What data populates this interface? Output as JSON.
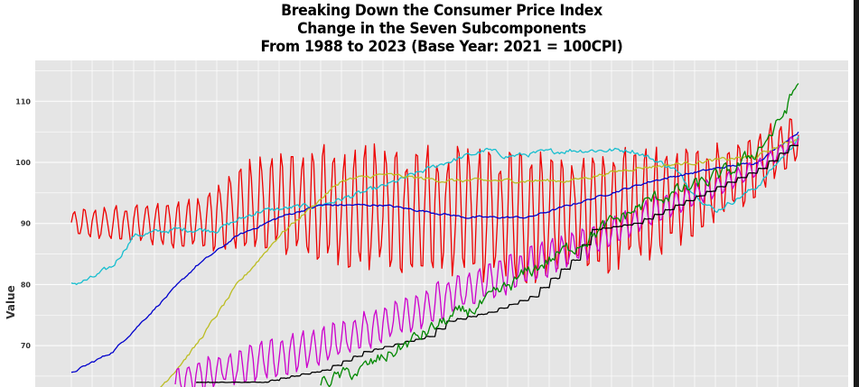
{
  "chart_data": {
    "type": "line",
    "title_lines": [
      "Breaking Down the Consumer Price Index",
      "Change in the Seven Subcomponents",
      "From 1988 to 2023 (Base Year: 2021 = 100CPI)"
    ],
    "ylabel": "Value",
    "xlabel": "",
    "ylim": [
      65,
      117
    ],
    "yticks": [
      "70",
      "80",
      "90",
      "100",
      "110"
    ],
    "grid": true,
    "x_start": 1988,
    "x_end": 2023,
    "series": [
      {
        "name": "red",
        "color": "#ee0000",
        "style": "seasonal",
        "anchors": [
          [
            1988,
            90
          ],
          [
            1994,
            90
          ],
          [
            1997,
            93
          ],
          [
            2000,
            93
          ],
          [
            2010,
            91
          ],
          [
            2014,
            92
          ],
          [
            2017,
            94
          ],
          [
            2020,
            98
          ],
          [
            2023,
            104
          ]
        ],
        "amp_anchors": [
          [
            1988,
            2
          ],
          [
            1991,
            3
          ],
          [
            1994,
            4
          ],
          [
            1996,
            7
          ],
          [
            2000,
            9
          ],
          [
            2005,
            10
          ],
          [
            2010,
            10
          ],
          [
            2015,
            9
          ],
          [
            2019,
            6
          ],
          [
            2023,
            4
          ]
        ]
      },
      {
        "name": "cyan",
        "color": "#17becf",
        "style": "smooth",
        "anchors": [
          [
            1988,
            80
          ],
          [
            1989,
            81
          ],
          [
            1990,
            83
          ],
          [
            1991,
            88
          ],
          [
            1993,
            89
          ],
          [
            1995,
            89
          ],
          [
            1997,
            92
          ],
          [
            2000,
            93
          ],
          [
            2003,
            96
          ],
          [
            2006,
            100
          ],
          [
            2008,
            102
          ],
          [
            2009,
            101
          ],
          [
            2012,
            102
          ],
          [
            2015,
            102
          ],
          [
            2017,
            99
          ],
          [
            2018,
            95
          ],
          [
            2019,
            92
          ],
          [
            2020,
            94
          ],
          [
            2021,
            96
          ],
          [
            2022,
            100
          ],
          [
            2023,
            104
          ]
        ],
        "noise": 0.7
      },
      {
        "name": "blue",
        "color": "#0000cc",
        "style": "smooth",
        "anchors": [
          [
            1988,
            65.5
          ],
          [
            1990,
            69
          ],
          [
            1992,
            76
          ],
          [
            1994,
            83
          ],
          [
            1996,
            88
          ],
          [
            1998,
            91
          ],
          [
            2000,
            93
          ],
          [
            2003,
            93
          ],
          [
            2007,
            91
          ],
          [
            2010,
            91
          ],
          [
            2013,
            94
          ],
          [
            2016,
            97
          ],
          [
            2019,
            99
          ],
          [
            2021,
            100
          ],
          [
            2023,
            105
          ]
        ],
        "noise": 0.3
      },
      {
        "name": "olive",
        "color": "#bcbd22",
        "style": "smooth",
        "anchors": [
          [
            1992,
            62
          ],
          [
            1994,
            70
          ],
          [
            1996,
            80
          ],
          [
            1998,
            88
          ],
          [
            2001,
            97
          ],
          [
            2003,
            98
          ],
          [
            2006,
            97
          ],
          [
            2009,
            97
          ],
          [
            2012,
            97
          ],
          [
            2015,
            99
          ],
          [
            2018,
            100
          ],
          [
            2021,
            101
          ],
          [
            2023,
            104
          ]
        ],
        "noise": 0.5
      },
      {
        "name": "magenta",
        "color": "#cc00cc",
        "style": "seasonal",
        "anchors": [
          [
            1993,
            64
          ],
          [
            1995,
            66
          ],
          [
            1998,
            68
          ],
          [
            2001,
            71
          ],
          [
            2004,
            75
          ],
          [
            2007,
            79
          ],
          [
            2010,
            83
          ],
          [
            2013,
            87
          ],
          [
            2016,
            92
          ],
          [
            2019,
            96
          ],
          [
            2021,
            99
          ],
          [
            2023,
            104
          ]
        ],
        "amp_anchors": [
          [
            1993,
            2
          ],
          [
            1997,
            3
          ],
          [
            2003,
            3
          ],
          [
            2010,
            3
          ],
          [
            2016,
            2
          ],
          [
            2023,
            1
          ]
        ]
      },
      {
        "name": "black",
        "color": "#000000",
        "style": "step",
        "anchors": [
          [
            1994,
            64
          ],
          [
            1997,
            64
          ],
          [
            2000,
            66
          ],
          [
            2002,
            69
          ],
          [
            2005,
            71.5
          ],
          [
            2006,
            74
          ],
          [
            2008,
            75.5
          ],
          [
            2010,
            78
          ],
          [
            2012,
            84
          ],
          [
            2013,
            89
          ],
          [
            2015,
            90
          ],
          [
            2017,
            93
          ],
          [
            2019,
            96
          ],
          [
            2021,
            99
          ],
          [
            2023,
            104
          ]
        ],
        "noise": 0.1
      },
      {
        "name": "green",
        "color": "#008800",
        "style": "smooth",
        "anchors": [
          [
            2000,
            64
          ],
          [
            2002,
            66
          ],
          [
            2004,
            70
          ],
          [
            2006,
            74
          ],
          [
            2008,
            77
          ],
          [
            2010,
            82
          ],
          [
            2012,
            86
          ],
          [
            2014,
            90
          ],
          [
            2016,
            94
          ],
          [
            2018,
            96
          ],
          [
            2020,
            99
          ],
          [
            2021,
            102
          ],
          [
            2022,
            106
          ],
          [
            2023,
            113
          ]
        ],
        "noise": 2.0
      }
    ]
  }
}
